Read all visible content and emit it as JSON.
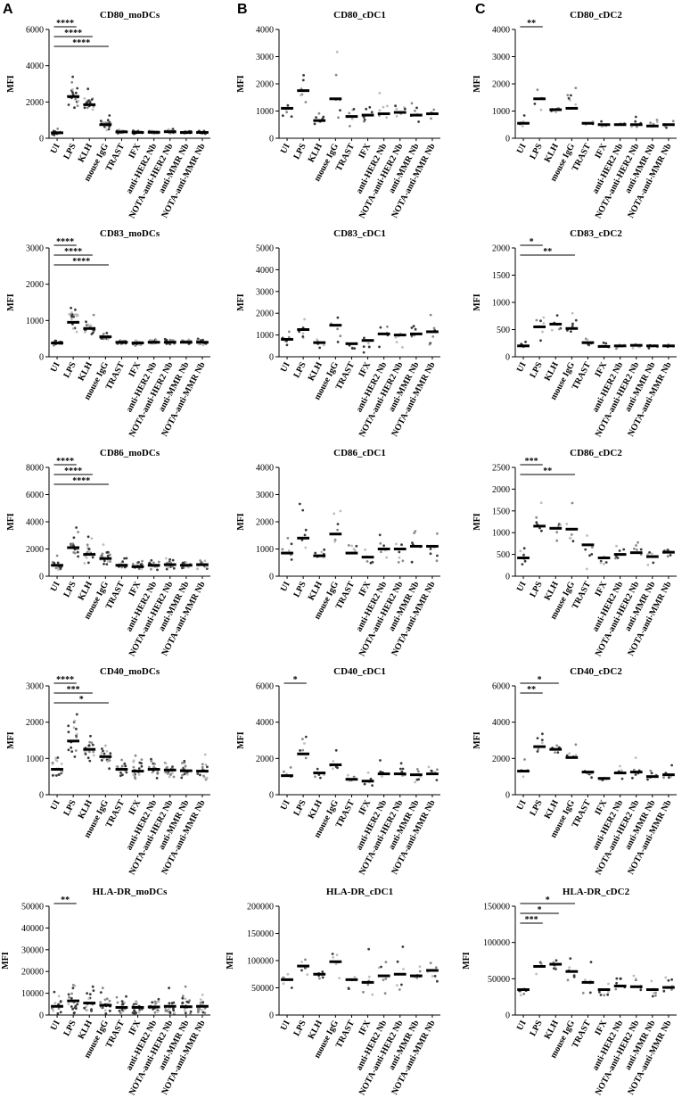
{
  "panel_letters": [
    "A",
    "B",
    "C"
  ],
  "chart_data": [
    {
      "type": "scatter",
      "title": "CD80_moDCs",
      "ylabel": "MFI",
      "ylim": [
        0,
        6000
      ],
      "yticks": [
        0,
        2000,
        4000,
        6000
      ],
      "categories": [
        "UI",
        "LPS",
        "KLH",
        "mouse IgG",
        "TRAST",
        "IFX",
        "anti-HER2 Nb",
        "NOTA-anti-HER2 Nb",
        "anti-MMR Nb",
        "NOTA-anti-MMR Nb"
      ],
      "means": [
        300,
        2300,
        1850,
        750,
        350,
        320,
        330,
        360,
        320,
        320
      ],
      "spread": [
        160,
        850,
        520,
        320,
        110,
        100,
        110,
        140,
        110,
        110
      ],
      "n": 18,
      "significance": [
        {
          "label": "****",
          "from": 0,
          "to": 1
        },
        {
          "label": "****",
          "from": 0,
          "to": 2
        },
        {
          "label": "****",
          "from": 0,
          "to": 3
        }
      ]
    },
    {
      "type": "scatter",
      "title": "CD80_cDC1",
      "ylabel": "MFI",
      "ylim": [
        0,
        4000
      ],
      "yticks": [
        0,
        1000,
        2000,
        3000,
        4000
      ],
      "categories": [
        "UI",
        "LPS",
        "KLH",
        "mouse IgG",
        "TRAST",
        "IFX",
        "anti-HER2 Nb",
        "NOTA-anti-HER2 Nb",
        "anti-MMR Nb",
        "NOTA-anti-MMR Nb"
      ],
      "means": [
        1100,
        1750,
        650,
        1450,
        800,
        850,
        900,
        950,
        850,
        900
      ],
      "spread": [
        450,
        900,
        300,
        1000,
        400,
        450,
        450,
        420,
        420,
        300
      ],
      "n": 6,
      "significance": []
    },
    {
      "type": "scatter",
      "title": "CD80_cDC2",
      "ylabel": "MFI",
      "ylim": [
        0,
        4000
      ],
      "yticks": [
        0,
        1000,
        2000,
        3000,
        4000
      ],
      "categories": [
        "UI",
        "LPS",
        "KLH",
        "mouse IgG",
        "TRAST",
        "IFX",
        "anti-HER2 Nb",
        "NOTA-anti-HER2 Nb",
        "anti-MMR Nb",
        "NOTA-anti-MMR Nb"
      ],
      "means": [
        550,
        1450,
        1050,
        1100,
        550,
        500,
        500,
        500,
        450,
        500
      ],
      "spread": [
        220,
        750,
        350,
        700,
        150,
        150,
        150,
        250,
        200,
        200
      ],
      "n": 6,
      "significance": [
        {
          "label": "**",
          "from": 0,
          "to": 1
        }
      ]
    },
    {
      "type": "scatter",
      "title": "CD83_moDCs",
      "ylabel": "MFI",
      "ylim": [
        0,
        3000
      ],
      "yticks": [
        0,
        1000,
        2000,
        3000
      ],
      "categories": [
        "UI",
        "LPS",
        "KLH",
        "mouse IgG",
        "TRAST",
        "IFX",
        "anti-HER2 Nb",
        "NOTA-anti-HER2 Nb",
        "anti-MMR Nb",
        "NOTA-anti-MMR Nb"
      ],
      "means": [
        380,
        950,
        780,
        550,
        400,
        380,
        400,
        400,
        400,
        400
      ],
      "spread": [
        90,
        400,
        280,
        140,
        90,
        80,
        90,
        90,
        80,
        90
      ],
      "n": 18,
      "significance": [
        {
          "label": "****",
          "from": 0,
          "to": 1
        },
        {
          "label": "****",
          "from": 0,
          "to": 2
        },
        {
          "label": "****",
          "from": 0,
          "to": 3
        }
      ]
    },
    {
      "type": "scatter",
      "title": "CD83_cDC1",
      "ylabel": "MFI",
      "ylim": [
        0,
        5000
      ],
      "yticks": [
        0,
        1000,
        2000,
        3000,
        4000,
        5000
      ],
      "categories": [
        "UI",
        "LPS",
        "KLH",
        "mouse IgG",
        "TRAST",
        "IFX",
        "anti-HER2 Nb",
        "NOTA-anti-HER2 Nb",
        "anti-MMR Nb",
        "NOTA-anti-MMR Nb"
      ],
      "means": [
        800,
        1250,
        650,
        1450,
        600,
        750,
        1050,
        1000,
        1050,
        1150
      ],
      "spread": [
        500,
        1000,
        300,
        900,
        400,
        600,
        800,
        800,
        900,
        900
      ],
      "n": 6,
      "significance": []
    },
    {
      "type": "scatter",
      "title": "CD83_cDC2",
      "ylabel": "MFI",
      "ylim": [
        0,
        2000
      ],
      "yticks": [
        0,
        500,
        1000,
        1500,
        2000
      ],
      "categories": [
        "UI",
        "LPS",
        "KLH",
        "mouse IgG",
        "TRAST",
        "IFX",
        "anti-HER2 Nb",
        "NOTA-anti-HER2 Nb",
        "anti-MMR Nb",
        "NOTA-anti-MMR Nb"
      ],
      "means": [
        200,
        550,
        600,
        520,
        260,
        190,
        200,
        210,
        200,
        200
      ],
      "spread": [
        80,
        350,
        280,
        300,
        100,
        60,
        70,
        70,
        70,
        70
      ],
      "n": 6,
      "significance": [
        {
          "label": "*",
          "from": 0,
          "to": 1
        },
        {
          "label": "**",
          "from": 0,
          "to": 3
        }
      ]
    },
    {
      "type": "scatter",
      "title": "CD86_moDCs",
      "ylabel": "MFI",
      "ylim": [
        0,
        8000
      ],
      "yticks": [
        0,
        2000,
        4000,
        6000,
        8000
      ],
      "categories": [
        "UI",
        "LPS",
        "KLH",
        "mouse IgG",
        "TRAST",
        "IFX",
        "anti-HER2 Nb",
        "NOTA-anti-HER2 Nb",
        "anti-MMR Nb",
        "NOTA-anti-MMR Nb"
      ],
      "means": [
        800,
        2100,
        1600,
        1300,
        800,
        700,
        800,
        850,
        800,
        850
      ],
      "spread": [
        450,
        1100,
        850,
        650,
        450,
        400,
        450,
        500,
        450,
        500
      ],
      "n": 18,
      "significance": [
        {
          "label": "****",
          "from": 0,
          "to": 1
        },
        {
          "label": "****",
          "from": 0,
          "to": 2
        },
        {
          "label": "****",
          "from": 0,
          "to": 3
        }
      ]
    },
    {
      "type": "scatter",
      "title": "CD86_cDC1",
      "ylabel": "MFI",
      "ylim": [
        0,
        4000
      ],
      "yticks": [
        0,
        1000,
        2000,
        3000,
        4000
      ],
      "categories": [
        "UI",
        "LPS",
        "KLH",
        "mouse IgG",
        "TRAST",
        "IFX",
        "anti-HER2 Nb",
        "NOTA-anti-HER2 Nb",
        "anti-MMR Nb",
        "NOTA-anti-MMR Nb"
      ],
      "means": [
        850,
        1400,
        750,
        1550,
        850,
        700,
        1000,
        1000,
        1100,
        1100
      ],
      "spread": [
        500,
        900,
        350,
        1000,
        500,
        400,
        700,
        700,
        900,
        800
      ],
      "n": 6,
      "significance": []
    },
    {
      "type": "scatter",
      "title": "CD86_cDC2",
      "ylabel": "MFI",
      "ylim": [
        0,
        2500
      ],
      "yticks": [
        0,
        500,
        1000,
        1500,
        2000,
        2500
      ],
      "categories": [
        "UI",
        "LPS",
        "KLH",
        "mouse IgG",
        "TRAST",
        "IFX",
        "anti-HER2 Nb",
        "NOTA-anti-HER2 Nb",
        "anti-MMR Nb",
        "NOTA-anti-MMR Nb"
      ],
      "means": [
        420,
        1150,
        1100,
        1080,
        720,
        420,
        500,
        540,
        450,
        550
      ],
      "spread": [
        200,
        450,
        450,
        400,
        600,
        200,
        250,
        300,
        300,
        250
      ],
      "n": 6,
      "significance": [
        {
          "label": "***",
          "from": 0,
          "to": 1
        },
        {
          "label": "**",
          "from": 0,
          "to": 3
        }
      ]
    },
    {
      "type": "scatter",
      "title": "CD40_moDCs",
      "ylabel": "MFI",
      "ylim": [
        0,
        3000
      ],
      "yticks": [
        0,
        1000,
        2000,
        3000
      ],
      "categories": [
        "UI",
        "LPS",
        "KLH",
        "mouse IgG",
        "TRAST",
        "IFX",
        "anti-HER2 Nb",
        "NOTA-anti-HER2 Nb",
        "anti-MMR Nb",
        "NOTA-anti-MMR Nb"
      ],
      "means": [
        700,
        1480,
        1250,
        1050,
        700,
        650,
        700,
        680,
        660,
        650
      ],
      "spread": [
        350,
        650,
        550,
        550,
        350,
        350,
        350,
        350,
        330,
        350
      ],
      "n": 18,
      "significance": [
        {
          "label": "****",
          "from": 0,
          "to": 1
        },
        {
          "label": "***",
          "from": 0,
          "to": 2
        },
        {
          "label": "*",
          "from": 0,
          "to": 3
        }
      ]
    },
    {
      "type": "scatter",
      "title": "CD40_cDC1",
      "ylabel": "MFI",
      "ylim": [
        0,
        6000
      ],
      "yticks": [
        0,
        2000,
        4000,
        6000
      ],
      "categories": [
        "UI",
        "LPS",
        "KLH",
        "mouse IgG",
        "TRAST",
        "IFX",
        "anti-HER2 Nb",
        "NOTA-anti-HER2 Nb",
        "anti-MMR Nb",
        "NOTA-anti-MMR Nb"
      ],
      "means": [
        1050,
        2250,
        1200,
        1650,
        850,
        750,
        1150,
        1150,
        1100,
        1150
      ],
      "spread": [
        500,
        1400,
        500,
        900,
        300,
        400,
        700,
        600,
        700,
        700
      ],
      "n": 6,
      "significance": [
        {
          "label": "*",
          "from": 0,
          "to": 1
        }
      ]
    },
    {
      "type": "scatter",
      "title": "CD40_cDC2",
      "ylabel": "MFI",
      "ylim": [
        0,
        6000
      ],
      "yticks": [
        0,
        2000,
        4000,
        6000
      ],
      "categories": [
        "UI",
        "LPS",
        "KLH",
        "mouse IgG",
        "TRAST",
        "IFX",
        "anti-HER2 Nb",
        "NOTA-anti-HER2 Nb",
        "anti-MMR Nb",
        "NOTA-anti-MMR Nb"
      ],
      "means": [
        1300,
        2650,
        2500,
        2050,
        1250,
        900,
        1200,
        1250,
        1000,
        1100
      ],
      "spread": [
        500,
        1200,
        900,
        800,
        400,
        300,
        500,
        500,
        400,
        400
      ],
      "n": 6,
      "significance": [
        {
          "label": "*",
          "from": 0,
          "to": 2
        },
        {
          "label": "**",
          "from": 0,
          "to": 1
        }
      ]
    },
    {
      "type": "scatter",
      "title": "HLA-DR_moDCs",
      "ylabel": "MFI",
      "ylim": [
        0,
        50000
      ],
      "yticks": [
        0,
        10000,
        20000,
        30000,
        40000,
        50000
      ],
      "categories": [
        "UI",
        "LPS",
        "KLH",
        "mouse IgG",
        "TRAST",
        "IFX",
        "anti-HER2 Nb",
        "NOTA-anti-HER2 Nb",
        "anti-MMR Nb",
        "NOTA-anti-MMR Nb"
      ],
      "means": [
        4000,
        6500,
        5500,
        4500,
        3500,
        3500,
        3700,
        4000,
        3800,
        4000
      ],
      "spread": [
        4500,
        9000,
        8000,
        9000,
        5000,
        5000,
        6000,
        6500,
        6500,
        6500
      ],
      "n": 18,
      "significance": [
        {
          "label": "**",
          "from": 0,
          "to": 1
        }
      ]
    },
    {
      "type": "scatter",
      "title": "HLA-DR_cDC1",
      "ylabel": "MFI",
      "ylim": [
        0,
        200000
      ],
      "yticks": [
        0,
        50000,
        100000,
        150000,
        200000
      ],
      "categories": [
        "UI",
        "LPS",
        "KLH",
        "mouse IgG",
        "TRAST",
        "IFX",
        "anti-HER2 Nb",
        "NOTA-anti-HER2 Nb",
        "anti-MMR Nb",
        "NOTA-anti-MMR Nb"
      ],
      "means": [
        65000,
        90000,
        75000,
        98000,
        65000,
        60000,
        72000,
        75000,
        72000,
        82000
      ],
      "spread": [
        20000,
        35000,
        15000,
        35000,
        25000,
        35000,
        40000,
        45000,
        45000,
        35000
      ],
      "n": 6,
      "significance": []
    },
    {
      "type": "scatter",
      "title": "HLA-DR_cDC2",
      "ylabel": "MFI",
      "ylim": [
        0,
        150000
      ],
      "yticks": [
        0,
        50000,
        100000,
        150000
      ],
      "categories": [
        "UI",
        "LPS",
        "KLH",
        "mouse IgG",
        "TRAST",
        "IFX",
        "anti-HER2 Nb",
        "NOTA-anti-HER2 Nb",
        "anti-MMR Nb",
        "NOTA-anti-MMR Nb"
      ],
      "means": [
        35000,
        67000,
        70000,
        60000,
        45000,
        35000,
        40000,
        39000,
        35000,
        38000
      ],
      "spread": [
        15000,
        20000,
        15000,
        20000,
        20000,
        15000,
        20000,
        20000,
        20000,
        20000
      ],
      "n": 6,
      "significance": [
        {
          "label": "*",
          "from": 0,
          "to": 3
        },
        {
          "label": "*",
          "from": 0,
          "to": 2
        },
        {
          "label": "***",
          "from": 0,
          "to": 1
        }
      ]
    }
  ]
}
